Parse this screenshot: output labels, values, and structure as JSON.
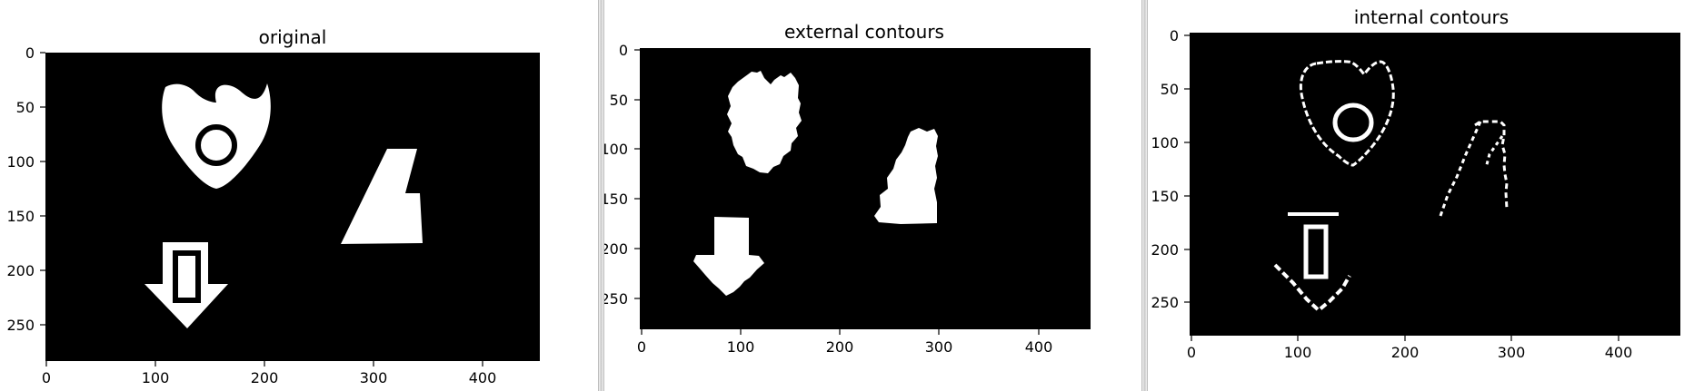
{
  "panels": [
    {
      "title": "original",
      "x_ticks": [
        "0",
        "100",
        "200",
        "300",
        "400"
      ],
      "y_ticks": [
        "0",
        "50",
        "100",
        "150",
        "200",
        "250"
      ]
    },
    {
      "title": "external contours",
      "x_ticks": [
        "0",
        "100",
        "200",
        "300",
        "400"
      ],
      "y_ticks": [
        "0",
        "50",
        "100",
        "150",
        "200",
        "250"
      ]
    },
    {
      "title": "internal contours",
      "x_ticks": [
        "0",
        "100",
        "200",
        "300",
        "400"
      ],
      "y_ticks": [
        "0",
        "50",
        "100",
        "150",
        "200",
        "250"
      ]
    }
  ],
  "colors": {
    "image_background": "#000000",
    "shape_fill": "#ffffff",
    "window_divider": "#c9c9c9"
  }
}
